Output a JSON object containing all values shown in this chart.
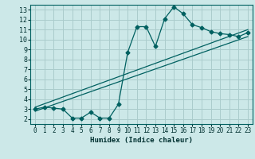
{
  "title": "",
  "xlabel": "Humidex (Indice chaleur)",
  "ylabel": "",
  "bg_color": "#cce8e8",
  "line_color": "#006060",
  "grid_color": "#aacccc",
  "xlim": [
    -0.5,
    23.5
  ],
  "ylim": [
    1.5,
    13.5
  ],
  "xticks": [
    0,
    1,
    2,
    3,
    4,
    5,
    6,
    7,
    8,
    9,
    10,
    11,
    12,
    13,
    14,
    15,
    16,
    17,
    18,
    19,
    20,
    21,
    22,
    23
  ],
  "yticks": [
    2,
    3,
    4,
    5,
    6,
    7,
    8,
    9,
    10,
    11,
    12,
    13
  ],
  "line1_x": [
    0,
    1,
    2,
    3,
    4,
    5,
    6,
    7,
    8,
    9,
    10,
    11,
    12,
    13,
    14,
    15,
    16,
    17,
    18,
    19,
    20,
    21,
    22,
    23
  ],
  "line1_y": [
    3.0,
    3.2,
    3.1,
    3.0,
    2.1,
    2.1,
    2.7,
    2.1,
    2.1,
    3.5,
    8.7,
    11.3,
    11.3,
    9.3,
    12.1,
    13.3,
    12.6,
    11.5,
    11.2,
    10.8,
    10.6,
    10.5,
    10.3,
    10.7
  ],
  "line2_x": [
    0,
    23
  ],
  "line2_y": [
    3.2,
    11.0
  ],
  "line3_x": [
    0,
    23
  ],
  "line3_y": [
    2.8,
    10.3
  ],
  "marker": "D",
  "markersize": 2.5,
  "linewidth": 0.9
}
